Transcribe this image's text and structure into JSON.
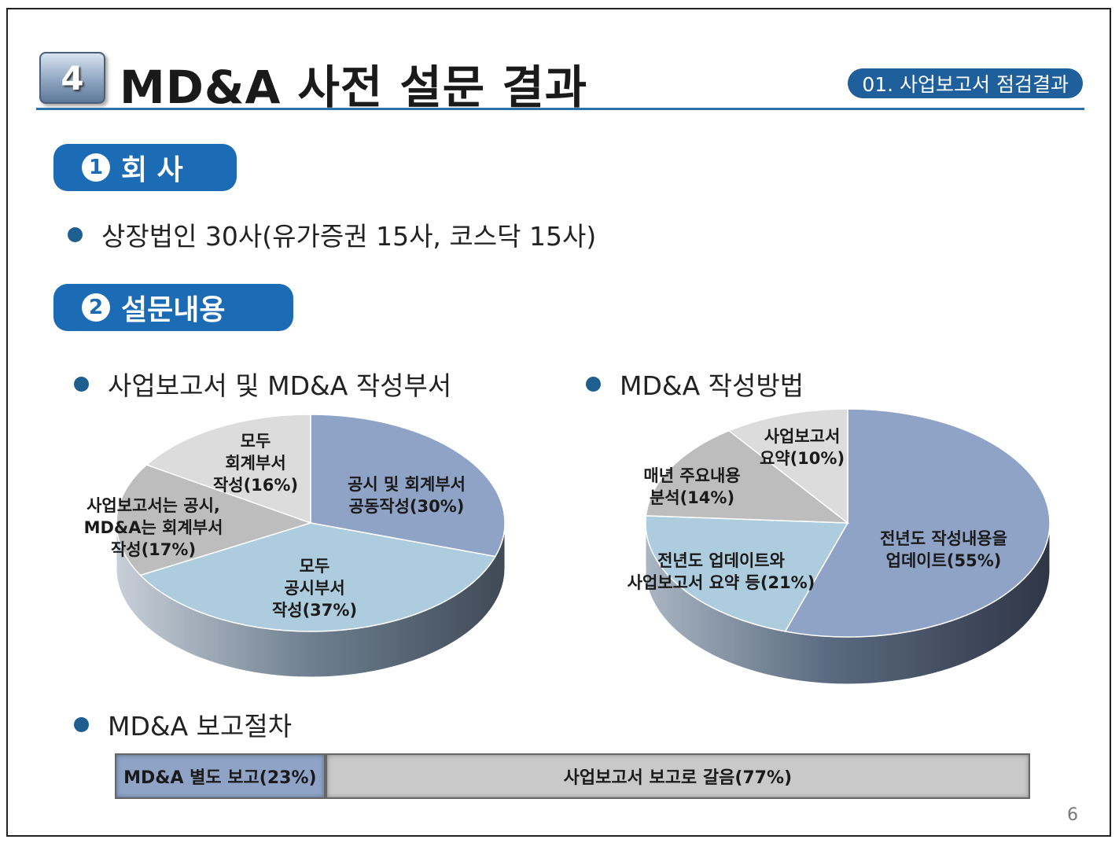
{
  "header": {
    "section_number": "4",
    "title": "MD&A 사전 설문 결과",
    "section_tag": "01. 사업보고서 점검결과"
  },
  "sections": [
    {
      "number": "1",
      "label": "회 사"
    },
    {
      "number": "2",
      "label": "설문내용"
    }
  ],
  "bullets": {
    "company": "상장법인 30사(유가증권 15사, 코스닥 15사)",
    "dept_title": "사업보고서 및 MD&A 작성부서",
    "method_title": "MD&A 작성방법",
    "procedure_title": "MD&A 보고절차"
  },
  "colors": {
    "dark_blue": "#1b6bb5",
    "slice_blue": "#8ea3c6",
    "slice_light_blue": "#adccdd",
    "slice_gray": "#bdbdbd",
    "slice_light_gray": "#dcdcdc"
  },
  "chart_data": [
    {
      "type": "pie",
      "title": "사업보고서 및 MD&A 작성부서",
      "slices": [
        {
          "label": [
            "공시 및 회계부서",
            "공동작성(30%)"
          ],
          "value": 30,
          "color": "#8ea3c6"
        },
        {
          "label": [
            "모두",
            "공시부서",
            "작성(37%)"
          ],
          "value": 37,
          "color": "#adccdd"
        },
        {
          "label": [
            "사업보고서는 공시,",
            "MD&A는 회계부서",
            "작성(17%)"
          ],
          "value": 17,
          "color": "#bdbdbd"
        },
        {
          "label": [
            "모두",
            "회계부서",
            "작성(16%)"
          ],
          "value": 16,
          "color": "#dcdcdc"
        }
      ]
    },
    {
      "type": "pie",
      "title": "MD&A 작성방법",
      "slices": [
        {
          "label": [
            "전년도 작성내용을",
            "업데이트(55%)"
          ],
          "value": 55,
          "color": "#8ea3c6"
        },
        {
          "label": [
            "전년도 업데이트와",
            "사업보고서 요약 등(21%)"
          ],
          "value": 21,
          "color": "#adccdd"
        },
        {
          "label": [
            "매년 주요내용",
            "분석(14%)"
          ],
          "value": 14,
          "color": "#bdbdbd"
        },
        {
          "label": [
            "사업보고서",
            "요약(10%)"
          ],
          "value": 10,
          "color": "#dcdcdc"
        }
      ]
    },
    {
      "type": "bar",
      "title": "MD&A 보고절차",
      "stacked": true,
      "segments": [
        {
          "label": "MD&A 별도 보고(23%)",
          "value": 23,
          "color": "#8ea3c6"
        },
        {
          "label": "사업보고서 보고로 갈음(77%)",
          "value": 77,
          "color": "#c9c9c9"
        }
      ]
    }
  ],
  "page_number": "6"
}
